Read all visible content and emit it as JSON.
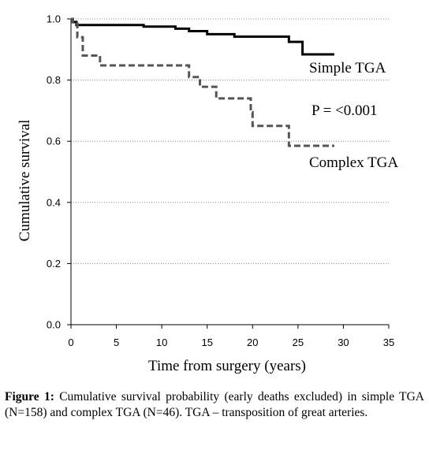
{
  "chart_data": {
    "type": "line",
    "xlabel": "Time from surgery (years)",
    "ylabel": "Cumulative survival",
    "xlim": [
      0,
      35
    ],
    "ylim": [
      0,
      1.0
    ],
    "xticks": [
      "0",
      "5",
      "10",
      "15",
      "20",
      "25",
      "30",
      "35"
    ],
    "yticks": [
      "0.0",
      "0.2",
      "0.4",
      "0.6",
      "0.8",
      "1.0"
    ],
    "grid": "horizontal dotted",
    "series": [
      {
        "name": "Simple TGA",
        "style": "solid",
        "color": "#000000",
        "x": [
          0,
          0.2,
          0.6,
          8,
          11.5,
          13,
          15,
          18,
          24,
          25.5,
          29
        ],
        "y": [
          1.0,
          0.99,
          0.98,
          0.975,
          0.968,
          0.96,
          0.95,
          0.942,
          0.925,
          0.884,
          0.884
        ]
      },
      {
        "name": "Complex TGA",
        "style": "dashed",
        "color": "#555555",
        "x": [
          0,
          0.2,
          0.7,
          1.3,
          3.2,
          13,
          14.2,
          16,
          19.8,
          20,
          24,
          29
        ],
        "y": [
          1.0,
          0.985,
          0.94,
          0.88,
          0.848,
          0.81,
          0.778,
          0.74,
          0.695,
          0.65,
          0.585,
          0.585
        ]
      }
    ],
    "annotation": "P = <0.001"
  },
  "caption": {
    "label": "Figure 1:",
    "text": "Cumulative survival probability (early deaths excluded) in simple TGA (N=158) and complex TGA (N=46). TGA – transposition of great arteries."
  }
}
